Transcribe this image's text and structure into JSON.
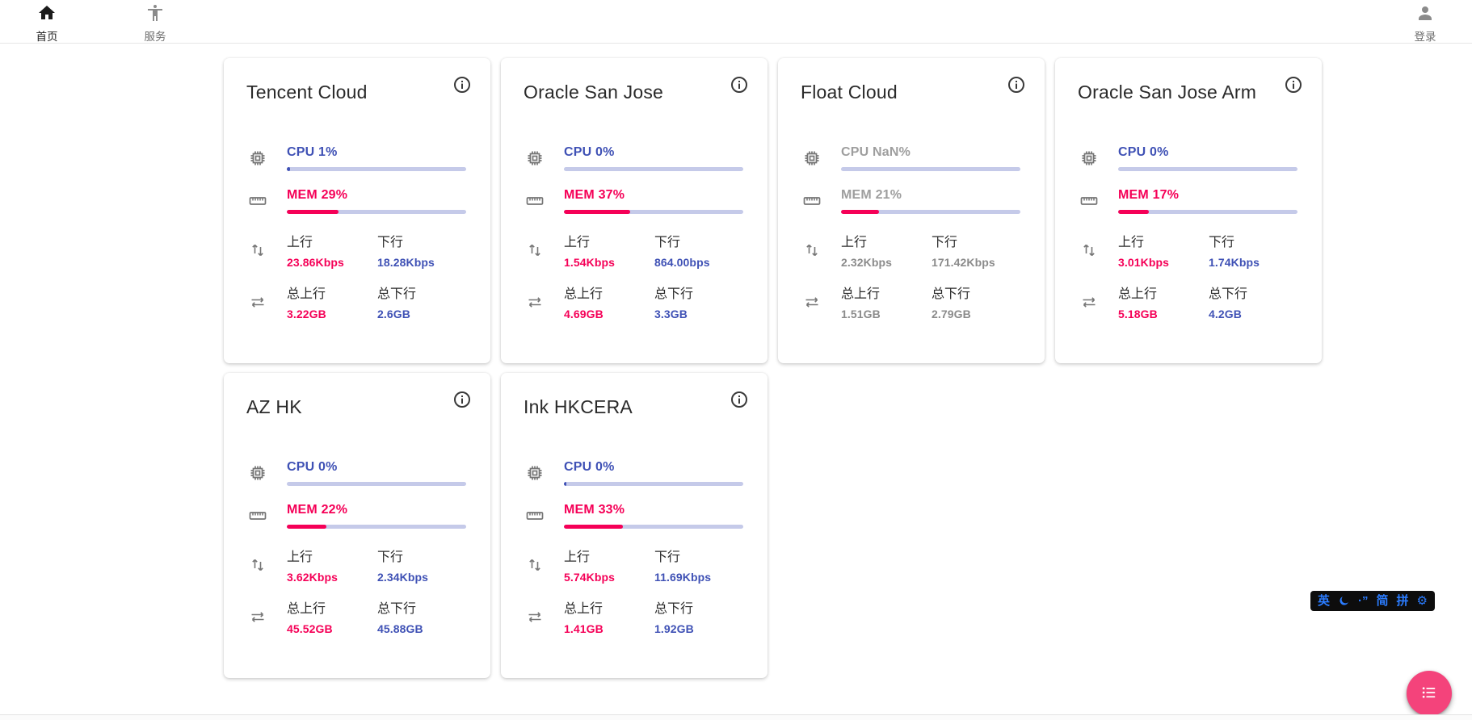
{
  "nav": {
    "items": [
      {
        "label": "首页",
        "icon": "home-icon",
        "active": true
      },
      {
        "label": "服务",
        "icon": "accessibility-icon",
        "active": false
      }
    ],
    "login_label": "登录"
  },
  "labels": {
    "upload": "上行",
    "download": "下行",
    "total_upload": "总上行",
    "total_download": "总下行"
  },
  "colors": {
    "accent_blue": "#3f51b5",
    "accent_pink": "#f50057",
    "bar_track": "#c5cae9",
    "offline_gray": "#9e9e9e",
    "fab_pink": "#f4437b",
    "ime_blue": "#2b7cff"
  },
  "servers": [
    {
      "name": "Tencent Cloud",
      "cpu_label": "CPU 1%",
      "cpu_bar_pct": 2,
      "mem_label": "MEM 29%",
      "mem_pct": 29,
      "upload": "23.86Kbps",
      "download": "18.28Kbps",
      "total_upload": "3.22GB",
      "total_download": "2.6GB",
      "offline": false
    },
    {
      "name": "Oracle San Jose",
      "cpu_label": "CPU 0%",
      "cpu_bar_pct": 0,
      "mem_label": "MEM 37%",
      "mem_pct": 37,
      "upload": "1.54Kbps",
      "download": "864.00bps",
      "total_upload": "4.69GB",
      "total_download": "3.3GB",
      "offline": false
    },
    {
      "name": "Float Cloud",
      "cpu_label": "CPU NaN%",
      "cpu_bar_pct": 0,
      "mem_label": "MEM 21%",
      "mem_pct": 21,
      "upload": "2.32Kbps",
      "download": "171.42Kbps",
      "total_upload": "1.51GB",
      "total_download": "2.79GB",
      "offline": true
    },
    {
      "name": "Oracle San Jose Arm",
      "cpu_label": "CPU 0%",
      "cpu_bar_pct": 0,
      "mem_label": "MEM 17%",
      "mem_pct": 17,
      "upload": "3.01Kbps",
      "download": "1.74Kbps",
      "total_upload": "5.18GB",
      "total_download": "4.2GB",
      "offline": false
    },
    {
      "name": "AZ HK",
      "cpu_label": "CPU 0%",
      "cpu_bar_pct": 0,
      "mem_label": "MEM 22%",
      "mem_pct": 22,
      "upload": "3.62Kbps",
      "download": "2.34Kbps",
      "total_upload": "45.52GB",
      "total_download": "45.88GB",
      "offline": false
    },
    {
      "name": "Ink HKCERA",
      "cpu_label": "CPU 0%",
      "cpu_bar_pct": 1.5,
      "mem_label": "MEM 33%",
      "mem_pct": 33,
      "upload": "5.74Kbps",
      "download": "11.69Kbps",
      "total_upload": "1.41GB",
      "total_download": "1.92GB",
      "offline": false
    }
  ],
  "ime": {
    "english_indicator": "英",
    "punct_indicator": "·”",
    "simplified_indicator": "简",
    "pinyin_indicator": "拼",
    "gear": "⚙"
  }
}
